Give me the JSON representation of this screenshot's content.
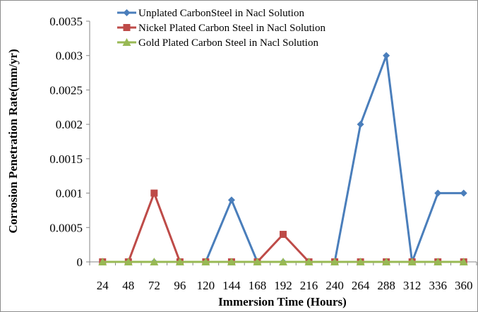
{
  "chart_data": {
    "type": "line",
    "title": "",
    "xlabel": "Immersion Time (Hours)",
    "ylabel": "Corrosion Penetration Rate(mm/yr)",
    "categories": [
      "24",
      "48",
      "72",
      "96",
      "120",
      "144",
      "168",
      "192",
      "216",
      "240",
      "264",
      "288",
      "312",
      "336",
      "360"
    ],
    "yticks": [
      "0",
      "0.0005",
      "0.001",
      "0.0015",
      "0.002",
      "0.0025",
      "0.003",
      "0.0035"
    ],
    "ylim": [
      0,
      0.0035
    ],
    "grid": false,
    "legend_position": "top",
    "series": [
      {
        "name": "Unplated CarbonSteel in Nacl Solution",
        "color": "#4a7ebb",
        "marker": "diamond",
        "values": [
          0,
          0,
          0,
          0,
          0,
          0.0009,
          0,
          0,
          0,
          0,
          0.002,
          0.003,
          0,
          0.001,
          0.001
        ]
      },
      {
        "name": "Nickel Plated Carbon Steel in Nacl Solution",
        "color": "#be4b48",
        "marker": "square",
        "values": [
          0,
          0,
          0.001,
          0,
          0,
          0,
          0,
          0.0004,
          0,
          0,
          0,
          0,
          0,
          0,
          0
        ]
      },
      {
        "name": "Gold Plated Carbon Steel in Nacl Solution",
        "color": "#98b954",
        "marker": "triangle",
        "values": [
          0,
          0,
          0,
          0,
          0,
          0,
          0,
          0,
          0,
          0,
          0,
          0,
          0,
          0,
          0
        ]
      }
    ]
  }
}
